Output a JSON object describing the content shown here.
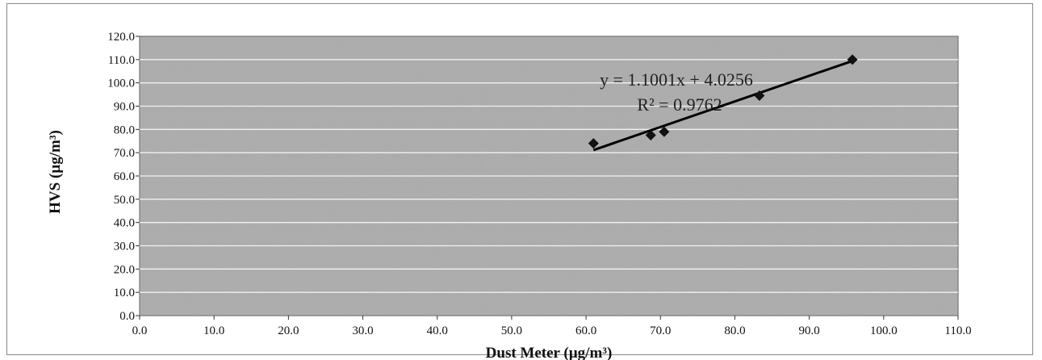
{
  "chart_data": {
    "type": "scatter",
    "title": "",
    "xlabel": "Dust Meter  (µg/m³)",
    "ylabel": "HVS (µg/m³)",
    "xlim": [
      0,
      110
    ],
    "ylim": [
      0,
      120
    ],
    "x_ticks": [
      "0.0",
      "10.0",
      "20.0",
      "30.0",
      "40.0",
      "50.0",
      "60.0",
      "70.0",
      "80.0",
      "90.0",
      "100.0",
      "110.0"
    ],
    "y_ticks": [
      "0.0",
      "10.0",
      "20.0",
      "30.0",
      "40.0",
      "50.0",
      "60.0",
      "70.0",
      "80.0",
      "90.0",
      "100.0",
      "110.0",
      "120.0"
    ],
    "grid": "horizontal",
    "legend": "none",
    "series": [
      {
        "points": [
          {
            "x": 61.0,
            "y": 74.0
          },
          {
            "x": 68.7,
            "y": 77.5
          },
          {
            "x": 70.5,
            "y": 79.0
          },
          {
            "x": 83.3,
            "y": 94.5
          },
          {
            "x": 95.8,
            "y": 110.0
          }
        ],
        "marker": "diamond",
        "color": "#111111"
      }
    ],
    "trendline": {
      "slope": 1.1001,
      "intercept": 4.0256,
      "x_range": [
        61.0,
        95.8
      ],
      "equation": "y = 1.1001x + 4.0256",
      "r_squared": "R² = 0.9762"
    },
    "plot_background": "#a8a8a8",
    "gridline_color": "#f2f2f2"
  }
}
